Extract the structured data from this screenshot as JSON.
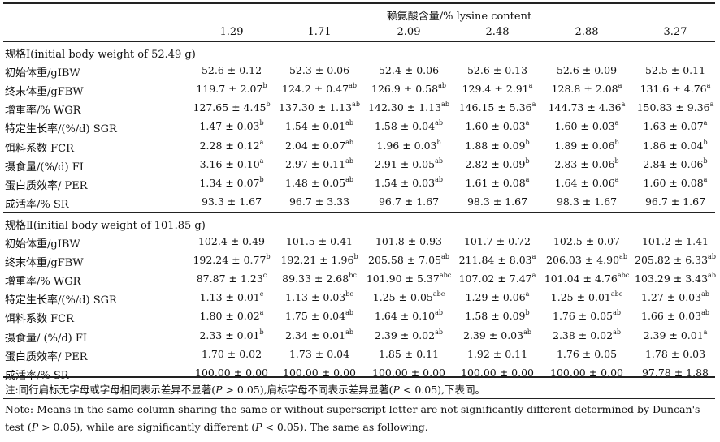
{
  "header": {
    "title": "赖氨酸含量/% lysine content",
    "columns": [
      "1.29",
      "1.71",
      "2.09",
      "2.48",
      "2.88",
      "3.27"
    ]
  },
  "sections": [
    {
      "title": "规格Ⅰ(initial body weight of 52.49 g)",
      "rows": [
        {
          "label": "初始体重/gIBW",
          "cells": [
            {
              "v": "52.6 ± 0.12",
              "s": ""
            },
            {
              "v": "52.3 ± 0.06",
              "s": ""
            },
            {
              "v": "52.4 ± 0.06",
              "s": ""
            },
            {
              "v": "52.6 ± 0.13",
              "s": ""
            },
            {
              "v": "52.6 ± 0.09",
              "s": ""
            },
            {
              "v": "52.5 ± 0.11",
              "s": ""
            }
          ]
        },
        {
          "label": "终末体重/gFBW",
          "cells": [
            {
              "v": "119.7 ± 2.07",
              "s": "b"
            },
            {
              "v": "124.2 ± 0.47",
              "s": "ab"
            },
            {
              "v": "126.9 ± 0.58",
              "s": "ab"
            },
            {
              "v": "129.4 ± 2.91",
              "s": "a"
            },
            {
              "v": "128.8 ± 2.08",
              "s": "a"
            },
            {
              "v": "131.6 ± 4.76",
              "s": "a"
            }
          ]
        },
        {
          "label": "增重率/% WGR",
          "cells": [
            {
              "v": "127.65 ± 4.45",
              "s": "b"
            },
            {
              "v": "137.30 ± 1.13",
              "s": "ab"
            },
            {
              "v": "142.30 ± 1.13",
              "s": "ab"
            },
            {
              "v": "146.15 ± 5.36",
              "s": "a"
            },
            {
              "v": "144.73 ± 4.36",
              "s": "a"
            },
            {
              "v": "150.83 ± 9.36",
              "s": "a"
            }
          ]
        },
        {
          "label": "特定生长率/(%/d) SGR",
          "cells": [
            {
              "v": "1.47 ± 0.03",
              "s": "b"
            },
            {
              "v": "1.54 ± 0.01",
              "s": "ab"
            },
            {
              "v": "1.58 ± 0.04",
              "s": "ab"
            },
            {
              "v": "1.60 ± 0.03",
              "s": "a"
            },
            {
              "v": "1.60 ± 0.03",
              "s": "a"
            },
            {
              "v": "1.63 ± 0.07",
              "s": "a"
            }
          ]
        },
        {
          "label": "饵料系数 FCR",
          "cells": [
            {
              "v": "2.28 ± 0.12",
              "s": "a"
            },
            {
              "v": "2.04 ± 0.07",
              "s": "ab"
            },
            {
              "v": "1.96 ± 0.03",
              "s": "b"
            },
            {
              "v": "1.88 ± 0.09",
              "s": "b"
            },
            {
              "v": "1.89 ± 0.06",
              "s": "b"
            },
            {
              "v": "1.86 ± 0.04",
              "s": "b"
            }
          ]
        },
        {
          "label": "摄食量/(%/d) FI",
          "cells": [
            {
              "v": "3.16 ± 0.10",
              "s": "a"
            },
            {
              "v": "2.97 ± 0.11",
              "s": "ab"
            },
            {
              "v": "2.91 ± 0.05",
              "s": "ab"
            },
            {
              "v": "2.82 ± 0.09",
              "s": "b"
            },
            {
              "v": "2.83 ± 0.06",
              "s": "b"
            },
            {
              "v": "2.84 ± 0.06",
              "s": "b"
            }
          ]
        },
        {
          "label": "蛋白质效率/ PER",
          "cells": [
            {
              "v": "1.34 ± 0.07",
              "s": "b"
            },
            {
              "v": "1.48 ± 0.05",
              "s": "ab"
            },
            {
              "v": "1.54 ± 0.03",
              "s": "ab"
            },
            {
              "v": "1.61 ± 0.08",
              "s": "a"
            },
            {
              "v": "1.64 ± 0.06",
              "s": "a"
            },
            {
              "v": "1.60 ± 0.08",
              "s": "a"
            }
          ]
        },
        {
          "label": "成活率/% SR",
          "cells": [
            {
              "v": "93.3 ± 1.67",
              "s": ""
            },
            {
              "v": "96.7 ± 3.33",
              "s": ""
            },
            {
              "v": "96.7 ± 1.67",
              "s": ""
            },
            {
              "v": "98.3 ± 1.67",
              "s": ""
            },
            {
              "v": "98.3 ± 1.67",
              "s": ""
            },
            {
              "v": "96.7 ± 1.67",
              "s": ""
            }
          ]
        }
      ]
    },
    {
      "title": "规格Ⅱ(initial body weight of 101.85 g)",
      "rows": [
        {
          "label": "初始体重/gIBW",
          "cells": [
            {
              "v": "102.4 ± 0.49",
              "s": ""
            },
            {
              "v": "101.5 ± 0.41",
              "s": ""
            },
            {
              "v": "101.8 ± 0.93",
              "s": ""
            },
            {
              "v": "101.7 ± 0.72",
              "s": ""
            },
            {
              "v": "102.5 ± 0.07",
              "s": ""
            },
            {
              "v": "101.2 ± 1.41",
              "s": ""
            }
          ]
        },
        {
          "label": "终末体重/gFBW",
          "cells": [
            {
              "v": "192.24 ± 0.77",
              "s": "b"
            },
            {
              "v": "192.21 ± 1.96",
              "s": "b"
            },
            {
              "v": "205.58 ± 7.05",
              "s": "ab"
            },
            {
              "v": "211.84 ± 8.03",
              "s": "a"
            },
            {
              "v": "206.03 ± 4.90",
              "s": "ab"
            },
            {
              "v": "205.82 ± 6.33",
              "s": "ab"
            }
          ]
        },
        {
          "label": "增重率/% WGR",
          "cells": [
            {
              "v": "87.87 ± 1.23",
              "s": "c"
            },
            {
              "v": "89.33 ± 2.68",
              "s": "bc"
            },
            {
              "v": "101.90 ± 5.37",
              "s": "abc"
            },
            {
              "v": "107.02 ± 7.47",
              "s": "a"
            },
            {
              "v": "101.04 ± 4.76",
              "s": "abc"
            },
            {
              "v": "103.29 ± 3.43",
              "s": "ab"
            }
          ]
        },
        {
          "label": "特定生长率/(%/d) SGR",
          "cells": [
            {
              "v": "1.13 ± 0.01",
              "s": "c"
            },
            {
              "v": "1.13 ± 0.03",
              "s": "bc"
            },
            {
              "v": "1.25 ± 0.05",
              "s": "abc"
            },
            {
              "v": "1.29 ± 0.06",
              "s": "a"
            },
            {
              "v": "1.25 ± 0.01",
              "s": "abc"
            },
            {
              "v": "1.27 ± 0.03",
              "s": "ab"
            }
          ]
        },
        {
          "label": "饵料系数 FCR",
          "cells": [
            {
              "v": "1.80 ± 0.02",
              "s": "a"
            },
            {
              "v": "1.75 ± 0.04",
              "s": "ab"
            },
            {
              "v": "1.64 ± 0.10",
              "s": "ab"
            },
            {
              "v": "1.58 ± 0.09",
              "s": "b"
            },
            {
              "v": "1.76 ± 0.05",
              "s": "ab"
            },
            {
              "v": "1.66 ± 0.03",
              "s": "ab"
            }
          ]
        },
        {
          "label": "摄食量/ (%/d) FI",
          "cells": [
            {
              "v": "2.33 ± 0.01",
              "s": "b"
            },
            {
              "v": "2.34 ± 0.01",
              "s": "ab"
            },
            {
              "v": "2.39 ± 0.02",
              "s": "ab"
            },
            {
              "v": "2.39 ± 0.03",
              "s": "ab"
            },
            {
              "v": "2.38 ± 0.02",
              "s": "ab"
            },
            {
              "v": "2.39 ± 0.01",
              "s": "a"
            }
          ]
        },
        {
          "label": "蛋白质效率/ PER",
          "cells": [
            {
              "v": "1.70 ± 0.02",
              "s": ""
            },
            {
              "v": "1.73 ± 0.04",
              "s": ""
            },
            {
              "v": "1.85 ± 0.11",
              "s": ""
            },
            {
              "v": "1.92 ± 0.11",
              "s": ""
            },
            {
              "v": "1.76 ± 0.05",
              "s": ""
            },
            {
              "v": "1.78 ± 0.03",
              "s": ""
            }
          ]
        },
        {
          "label": "成活率/% SR",
          "cells": [
            {
              "v": "100.00 ± 0.00",
              "s": ""
            },
            {
              "v": "100.00 ± 0.00",
              "s": ""
            },
            {
              "v": "100.00 ± 0.00",
              "s": ""
            },
            {
              "v": "100.00 ± 0.00",
              "s": ""
            },
            {
              "v": "100.00 ± 0.00",
              "s": ""
            },
            {
              "v": "97.78 ± 1.88",
              "s": ""
            }
          ]
        }
      ]
    }
  ],
  "notes": {
    "cn_a": "注:同行肩标无字母或字母相同表示差异不显著(",
    "cn_p1": "P",
    "cn_b": " > 0.05),肩标字母不同表示差异显著(",
    "cn_p2": "P",
    "cn_c": " < 0.05),下表同。",
    "en_a": "Note: Means in the same column sharing the same or without superscript letter are not significantly different determined by Duncan's test (",
    "en_p1": "P",
    "en_b": " > 0.05), while are significantly different (",
    "en_p2": "P",
    "en_c": " < 0.05). The same as following."
  }
}
